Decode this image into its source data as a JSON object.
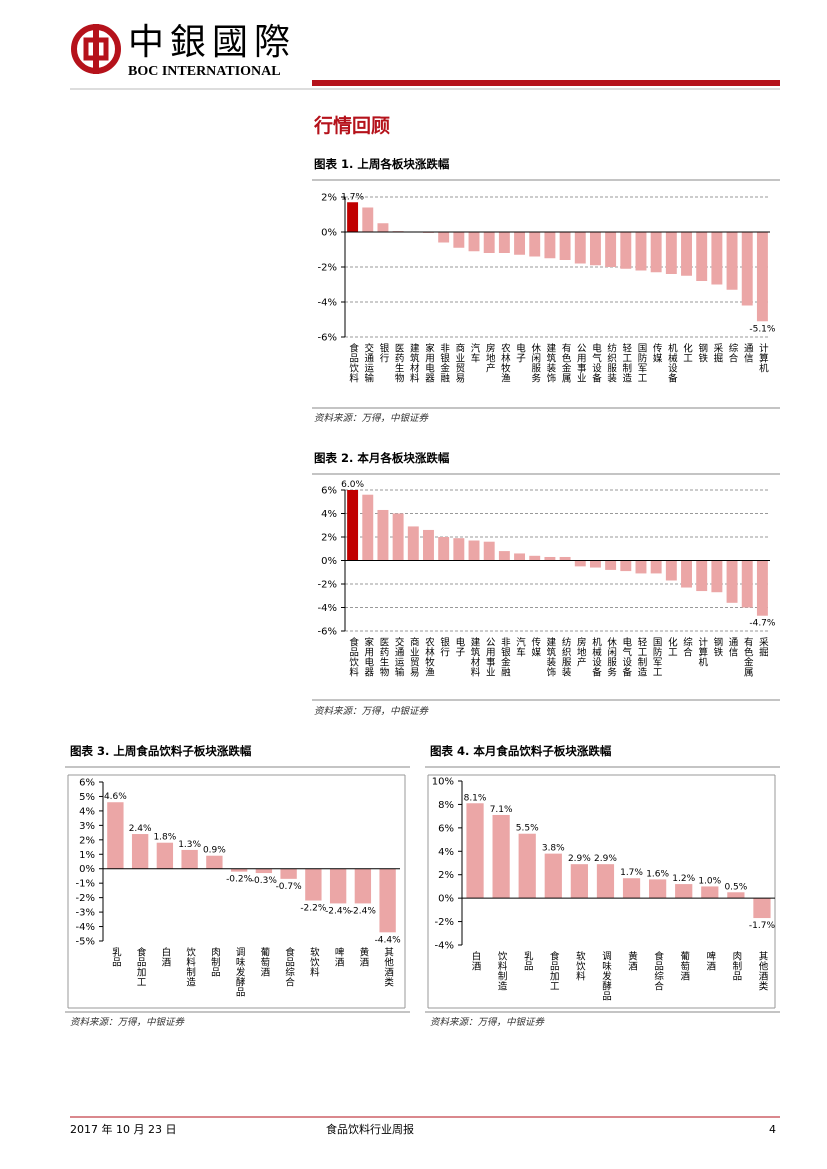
{
  "header": {
    "logo_cn": "中銀國際",
    "logo_en": "BOC INTERNATIONAL"
  },
  "section_title": "行情回顾",
  "chart_data": [
    {
      "type": "bar",
      "title": "图表 1. 上周各板块涨跌幅",
      "source": "资料来源：万得，中银证券",
      "categories": [
        "食品饮料",
        "交通运输",
        "银行",
        "医药生物",
        "建筑材料",
        "家用电器",
        "非银金融",
        "商业贸易",
        "汽车",
        "房地产",
        "农林牧渔",
        "电子",
        "休闲服务",
        "建筑装饰",
        "有色金属",
        "公用事业",
        "电气设备",
        "纺织服装",
        "轻工制造",
        "国防军工",
        "传媒",
        "机械设备",
        "化工",
        "钢铁",
        "采掘",
        "综合",
        "通信",
        "计算机"
      ],
      "values": [
        1.7,
        1.4,
        0.5,
        0.05,
        0.0,
        -0.05,
        -0.6,
        -0.9,
        -1.1,
        -1.2,
        -1.2,
        -1.3,
        -1.4,
        -1.5,
        -1.6,
        -1.8,
        -1.9,
        -2.0,
        -2.1,
        -2.2,
        -2.3,
        -2.4,
        -2.5,
        -2.8,
        -3.0,
        -3.3,
        -4.2,
        -5.1
      ],
      "value_labels": [
        "1.7%",
        null,
        null,
        null,
        null,
        null,
        null,
        null,
        null,
        null,
        null,
        null,
        null,
        null,
        null,
        null,
        null,
        null,
        null,
        null,
        null,
        null,
        null,
        null,
        null,
        null,
        null,
        "-5.1%"
      ],
      "colors": [
        "#c00000",
        "#eba6a6",
        "#eba6a6",
        "#eba6a6",
        "#eba6a6",
        "#eba6a6",
        "#eba6a6",
        "#eba6a6",
        "#eba6a6",
        "#eba6a6",
        "#eba6a6",
        "#eba6a6",
        "#eba6a6",
        "#eba6a6",
        "#eba6a6",
        "#eba6a6",
        "#eba6a6",
        "#eba6a6",
        "#eba6a6",
        "#eba6a6",
        "#eba6a6",
        "#eba6a6",
        "#eba6a6",
        "#eba6a6",
        "#eba6a6",
        "#eba6a6",
        "#eba6a6",
        "#eba6a6"
      ],
      "ylim": [
        -6,
        2
      ],
      "yticks": [
        {
          "value": -6,
          "label": "-6%"
        },
        {
          "value": -4,
          "label": "-4%"
        },
        {
          "value": -2,
          "label": "-2%"
        },
        {
          "value": 0,
          "label": "0%"
        },
        {
          "value": 2,
          "label": "2%"
        }
      ],
      "grid": true
    },
    {
      "type": "bar",
      "title": "图表 2. 本月各板块涨跌幅",
      "source": "资料来源：万得，中银证券",
      "categories": [
        "食品饮料",
        "家用电器",
        "医药生物",
        "交通运输",
        "商业贸易",
        "农林牧渔",
        "银行",
        "电子",
        "建筑材料",
        "公用事业",
        "非银金融",
        "汽车",
        "传媒",
        "建筑装饰",
        "纺织服装",
        "房地产",
        "机械设备",
        "休闲服务",
        "电气设备",
        "轻工制造",
        "国防军工",
        "化工",
        "综合",
        "计算机",
        "钢铁",
        "通信",
        "有色金属",
        "采掘"
      ],
      "values": [
        6.0,
        5.6,
        4.3,
        4.0,
        2.9,
        2.6,
        2.0,
        1.9,
        1.7,
        1.6,
        0.8,
        0.6,
        0.4,
        0.3,
        0.3,
        -0.5,
        -0.6,
        -0.8,
        -0.9,
        -1.1,
        -1.1,
        -1.7,
        -2.3,
        -2.6,
        -2.7,
        -3.6,
        -4.0,
        -4.7
      ],
      "value_labels": [
        "6.0%",
        null,
        null,
        null,
        null,
        null,
        null,
        null,
        null,
        null,
        null,
        null,
        null,
        null,
        null,
        null,
        null,
        null,
        null,
        null,
        null,
        null,
        null,
        null,
        null,
        null,
        null,
        "-4.7%"
      ],
      "colors": [
        "#c00000",
        "#eba6a6",
        "#eba6a6",
        "#eba6a6",
        "#eba6a6",
        "#eba6a6",
        "#eba6a6",
        "#eba6a6",
        "#eba6a6",
        "#eba6a6",
        "#eba6a6",
        "#eba6a6",
        "#eba6a6",
        "#eba6a6",
        "#eba6a6",
        "#eba6a6",
        "#eba6a6",
        "#eba6a6",
        "#eba6a6",
        "#eba6a6",
        "#eba6a6",
        "#eba6a6",
        "#eba6a6",
        "#eba6a6",
        "#eba6a6",
        "#eba6a6",
        "#eba6a6",
        "#eba6a6"
      ],
      "ylim": [
        -6,
        6
      ],
      "yticks": [
        {
          "value": -6,
          "label": "-6%"
        },
        {
          "value": -4,
          "label": "-4%"
        },
        {
          "value": -2,
          "label": "-2%"
        },
        {
          "value": 0,
          "label": "0%"
        },
        {
          "value": 2,
          "label": "2%"
        },
        {
          "value": 4,
          "label": "4%"
        },
        {
          "value": 6,
          "label": "6%"
        }
      ],
      "grid": true
    },
    {
      "type": "bar",
      "title": "图表 3. 上周食品饮料子板块涨跌幅",
      "source": "资料来源：万得，中银证券",
      "categories": [
        "乳品",
        "食品加工",
        "白酒",
        "饮料制造",
        "肉制品",
        "调味发酵品",
        "葡萄酒",
        "食品综合",
        "软饮料",
        "啤酒",
        "黄酒",
        "其他酒类"
      ],
      "values": [
        4.6,
        2.4,
        1.8,
        1.3,
        0.9,
        -0.2,
        -0.3,
        -0.7,
        -2.2,
        -2.4,
        -2.4,
        -4.4
      ],
      "value_labels": [
        "4.6%",
        "2.4%",
        "1.8%",
        "1.3%",
        "0.9%",
        "-0.2%",
        "-0.3%",
        "-0.7%",
        "-2.2%",
        "-2.4%",
        "-2.4%",
        "-4.4%"
      ],
      "colors": [
        "#eba6a6",
        "#eba6a6",
        "#eba6a6",
        "#eba6a6",
        "#eba6a6",
        "#eba6a6",
        "#eba6a6",
        "#eba6a6",
        "#eba6a6",
        "#eba6a6",
        "#eba6a6",
        "#eba6a6"
      ],
      "ylim": [
        -5,
        6
      ],
      "yticks": [
        {
          "value": -5,
          "label": "-5%"
        },
        {
          "value": -4,
          "label": "-4%"
        },
        {
          "value": -3,
          "label": "-3%"
        },
        {
          "value": -2,
          "label": "-2%"
        },
        {
          "value": -1,
          "label": "-1%"
        },
        {
          "value": 0,
          "label": "0%"
        },
        {
          "value": 1,
          "label": "1%"
        },
        {
          "value": 2,
          "label": "2%"
        },
        {
          "value": 3,
          "label": "3%"
        },
        {
          "value": 4,
          "label": "4%"
        },
        {
          "value": 5,
          "label": "5%"
        },
        {
          "value": 6,
          "label": "6%"
        }
      ],
      "grid": false
    },
    {
      "type": "bar",
      "title": "图表 4. 本月食品饮料子板块涨跌幅",
      "source": "资料来源：万得，中银证券",
      "categories": [
        "白酒",
        "饮料制造",
        "乳品",
        "食品加工",
        "软饮料",
        "调味发酵品",
        "黄酒",
        "食品综合",
        "葡萄酒",
        "啤酒",
        "肉制品",
        "其他酒类"
      ],
      "values": [
        8.1,
        7.1,
        5.5,
        3.8,
        2.9,
        2.9,
        1.7,
        1.6,
        1.2,
        1.0,
        0.5,
        -1.7
      ],
      "value_labels": [
        "8.1%",
        "7.1%",
        "5.5%",
        "3.8%",
        "2.9%",
        "2.9%",
        "1.7%",
        "1.6%",
        "1.2%",
        "1.0%",
        "0.5%",
        "-1.7%"
      ],
      "colors": [
        "#eba6a6",
        "#eba6a6",
        "#eba6a6",
        "#eba6a6",
        "#eba6a6",
        "#eba6a6",
        "#eba6a6",
        "#eba6a6",
        "#eba6a6",
        "#eba6a6",
        "#eba6a6",
        "#eba6a6"
      ],
      "ylim": [
        -4,
        10
      ],
      "yticks": [
        {
          "value": -4,
          "label": "-4%"
        },
        {
          "value": -2,
          "label": "-2%"
        },
        {
          "value": 0,
          "label": "0%"
        },
        {
          "value": 2,
          "label": "2%"
        },
        {
          "value": 4,
          "label": "4%"
        },
        {
          "value": 6,
          "label": "6%"
        },
        {
          "value": 8,
          "label": "8%"
        },
        {
          "value": 10,
          "label": "10%"
        }
      ],
      "grid": false
    }
  ],
  "footer": {
    "date": "2017 年 10 月 23 日",
    "report": "食品饮料行业周报",
    "page": "4"
  }
}
